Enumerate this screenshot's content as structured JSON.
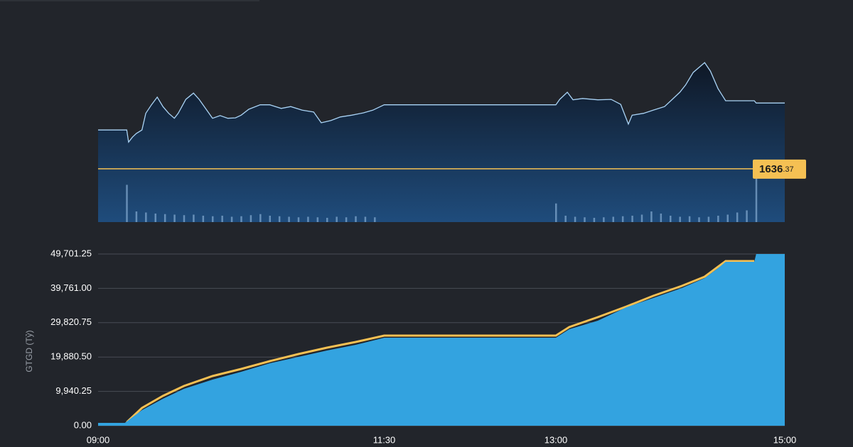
{
  "chart_data": [
    {
      "type": "line",
      "color": "#a9d3f5",
      "xlim": [
        "09:00",
        "15:00"
      ],
      "ylim": [
        1624.5,
        1660.5
      ],
      "x": [
        "09:00",
        "09:15",
        "09:16",
        "09:18",
        "09:20",
        "09:23",
        "09:25",
        "09:28",
        "09:31",
        "09:34",
        "09:37",
        "09:40",
        "09:42",
        "09:46",
        "09:50",
        "09:53",
        "09:57",
        "10:00",
        "10:04",
        "10:08",
        "10:12",
        "10:15",
        "10:19",
        "10:25",
        "10:30",
        "10:36",
        "10:41",
        "10:47",
        "10:53",
        "10:57",
        "11:02",
        "11:07",
        "11:13",
        "11:19",
        "11:24",
        "11:30",
        "13:00",
        "13:02",
        "13:06",
        "13:09",
        "13:14",
        "13:22",
        "13:29",
        "13:34",
        "13:38",
        "13:40",
        "13:46",
        "13:51",
        "13:57",
        "14:01",
        "14:05",
        "14:08",
        "14:12",
        "14:18",
        "14:21",
        "14:25",
        "14:29",
        "14:44",
        "14:45",
        "15:00"
      ],
      "values": [
        1645.0,
        1645.0,
        1642.3,
        1643.4,
        1644.2,
        1645.0,
        1648.7,
        1650.6,
        1652.3,
        1650.2,
        1648.7,
        1647.6,
        1648.7,
        1651.8,
        1653.2,
        1651.8,
        1649.4,
        1647.6,
        1648.2,
        1647.6,
        1647.7,
        1648.3,
        1649.6,
        1650.6,
        1650.6,
        1649.8,
        1650.2,
        1649.4,
        1649.0,
        1646.6,
        1647.1,
        1647.9,
        1648.3,
        1648.8,
        1649.4,
        1650.6,
        1650.6,
        1651.8,
        1653.4,
        1651.7,
        1652.0,
        1651.7,
        1651.8,
        1650.7,
        1646.3,
        1648.3,
        1648.7,
        1649.4,
        1650.2,
        1651.8,
        1653.4,
        1655.0,
        1657.8,
        1660.0,
        1658.1,
        1654.2,
        1651.5,
        1651.5,
        1651.0,
        1651.0
      ],
      "reference": {
        "value": 1636.37,
        "label": "1636.37",
        "color": "#f5c053"
      },
      "volume": {
        "color": "#7fa6cc",
        "vlim": [
          0,
          100
        ],
        "x": [
          "09:15",
          "09:20",
          "09:25",
          "09:30",
          "09:35",
          "09:40",
          "09:45",
          "09:50",
          "09:55",
          "10:00",
          "10:05",
          "10:10",
          "10:15",
          "10:20",
          "10:25",
          "10:30",
          "10:35",
          "10:40",
          "10:45",
          "10:50",
          "10:55",
          "11:00",
          "11:05",
          "11:10",
          "11:15",
          "11:20",
          "11:25",
          "13:00",
          "13:05",
          "13:10",
          "13:15",
          "13:20",
          "13:25",
          "13:30",
          "13:35",
          "13:40",
          "13:45",
          "13:50",
          "13:55",
          "14:00",
          "14:05",
          "14:10",
          "14:15",
          "14:20",
          "14:25",
          "14:30",
          "14:35",
          "14:40",
          "14:45"
        ],
        "values": [
          70,
          20,
          18,
          16,
          15,
          14,
          13,
          14,
          12,
          11,
          12,
          10,
          11,
          13,
          15,
          12,
          11,
          10,
          9,
          10,
          9,
          8,
          10,
          9,
          11,
          10,
          9,
          35,
          12,
          10,
          9,
          8,
          9,
          10,
          11,
          12,
          14,
          20,
          16,
          12,
          10,
          11,
          9,
          10,
          12,
          14,
          18,
          22,
          100
        ]
      }
    },
    {
      "type": "area",
      "y_label": "GTGD (Tỷ)",
      "xlim": [
        "09:00",
        "15:00"
      ],
      "xticks": [
        "09:00",
        "11:30",
        "13:00",
        "15:00"
      ],
      "ylim": [
        0,
        49701.25
      ],
      "yticks": [
        {
          "value": 0,
          "label": "0.00"
        },
        {
          "value": 9940.25,
          "label": "9,940.25"
        },
        {
          "value": 19880.5,
          "label": "19,880.50"
        },
        {
          "value": 29820.75,
          "label": "29,820.75"
        },
        {
          "value": 39761,
          "label": "39,761.00"
        },
        {
          "value": 49701.25,
          "label": "49,701.25"
        }
      ],
      "grid": true,
      "series": [
        {
          "color": "#f5c053",
          "x": [
            "09:15",
            "09:23",
            "09:34",
            "09:45",
            "10:00",
            "10:15",
            "10:30",
            "10:45",
            "11:00",
            "11:15",
            "11:30",
            "13:00",
            "13:07",
            "13:22",
            "13:37",
            "13:51",
            "14:06",
            "14:18",
            "14:25",
            "14:29",
            "14:44"
          ],
          "values": [
            1000,
            5134,
            8626,
            11501,
            14377,
            16430,
            18690,
            20743,
            22592,
            24235,
            26083,
            26083,
            28548,
            31423,
            34504,
            37585,
            40460,
            43130,
            46005,
            47648,
            47648
          ]
        },
        {
          "color": "#33a3e0",
          "x": [
            "09:00",
            "09:14",
            "09:15",
            "09:23",
            "09:34",
            "09:45",
            "10:00",
            "10:15",
            "10:30",
            "10:45",
            "11:00",
            "11:15",
            "11:30",
            "13:00",
            "13:07",
            "13:22",
            "13:37",
            "13:51",
            "14:06",
            "14:18",
            "14:25",
            "14:29",
            "14:44",
            "14:45",
            "15:00"
          ],
          "values": [
            822,
            822,
            1232,
            4518,
            7804,
            10680,
            13350,
            15609,
            18073,
            19922,
            21770,
            23413,
            25467,
            25467,
            27932,
            30396,
            34298,
            36968,
            39844,
            42719,
            45594,
            47443,
            47443,
            49701.25,
            49701.25
          ]
        }
      ]
    }
  ]
}
